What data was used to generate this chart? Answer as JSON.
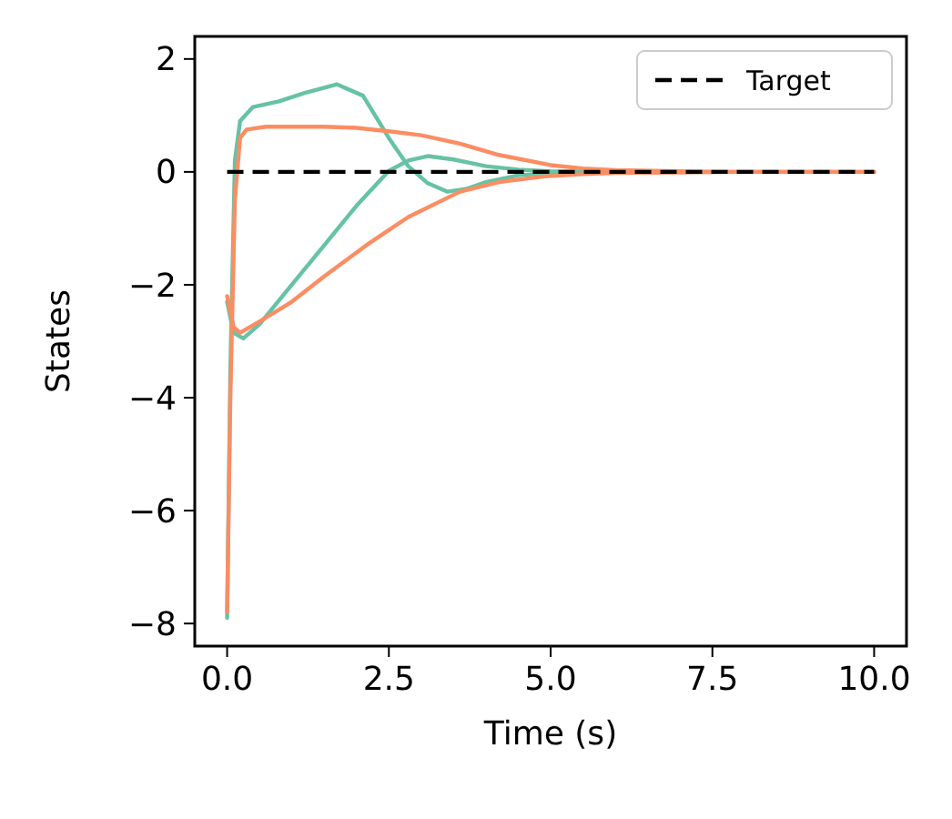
{
  "chart_data": {
    "type": "line",
    "xlabel": "Time (s)",
    "ylabel": "States",
    "xlim": [
      -0.5,
      10.5
    ],
    "ylim": [
      -8.4,
      2.4
    ],
    "xticks": [
      {
        "value": 0,
        "label": "0.0"
      },
      {
        "value": 2.5,
        "label": "2.5"
      },
      {
        "value": 5,
        "label": "5.0"
      },
      {
        "value": 7.5,
        "label": "7.5"
      },
      {
        "value": 10,
        "label": "10.0"
      }
    ],
    "yticks": [
      {
        "value": -8,
        "label": "−8"
      },
      {
        "value": -6,
        "label": "−6"
      },
      {
        "value": -4,
        "label": "−4"
      },
      {
        "value": -2,
        "label": "−2"
      },
      0,
      2
    ],
    "grid": false,
    "legend": "top right",
    "line_style": "solid",
    "series": [
      {
        "color": "#66c2a5",
        "x": [
          0,
          0.05,
          0.12,
          0.2,
          0.4,
          0.8,
          1.2,
          1.7,
          2.1,
          2.5,
          2.8,
          3.1,
          3.4,
          3.7,
          4.0,
          4.5,
          5,
          6,
          7
        ],
        "values": [
          -7.9,
          -3.5,
          0.2,
          0.9,
          1.15,
          1.25,
          1.4,
          1.55,
          1.35,
          0.6,
          0.1,
          -0.2,
          -0.35,
          -0.3,
          -0.18,
          -0.06,
          -0.02,
          0,
          0
        ]
      },
      {
        "color": "#66c2a5",
        "x": [
          0,
          0.1,
          0.25,
          0.5,
          1,
          1.5,
          2,
          2.5,
          2.8,
          3.1,
          3.5,
          4,
          4.5,
          5,
          6,
          7
        ],
        "values": [
          -2.3,
          -2.85,
          -2.95,
          -2.7,
          -2.0,
          -1.3,
          -0.6,
          0.02,
          0.2,
          0.28,
          0.22,
          0.1,
          0.04,
          0.01,
          0,
          0
        ]
      },
      {
        "color": "#fc8d62",
        "x": [
          0,
          0.05,
          0.12,
          0.2,
          0.3,
          0.6,
          1,
          1.5,
          2,
          2.5,
          3,
          3.6,
          4.2,
          5,
          5.5,
          6,
          7,
          8,
          10
        ],
        "values": [
          -7.8,
          -4.0,
          -0.5,
          0.6,
          0.75,
          0.8,
          0.8,
          0.8,
          0.78,
          0.72,
          0.65,
          0.5,
          0.3,
          0.12,
          0.06,
          0.03,
          0.01,
          0,
          0
        ]
      },
      {
        "color": "#fc8d62",
        "x": [
          0,
          0.1,
          0.2,
          0.5,
          1,
          1.5,
          2.2,
          2.8,
          3.6,
          4.2,
          4.9,
          5.5,
          6,
          7,
          8,
          10
        ],
        "values": [
          -2.2,
          -2.75,
          -2.85,
          -2.65,
          -2.3,
          -1.85,
          -1.26,
          -0.8,
          -0.35,
          -0.18,
          -0.08,
          -0.04,
          -0.02,
          -0.01,
          0,
          0
        ]
      }
    ],
    "ref_lines": [
      {
        "axis": "y",
        "value": 0,
        "label": "Target",
        "color": "#000000",
        "line_style": "dashed"
      }
    ]
  }
}
